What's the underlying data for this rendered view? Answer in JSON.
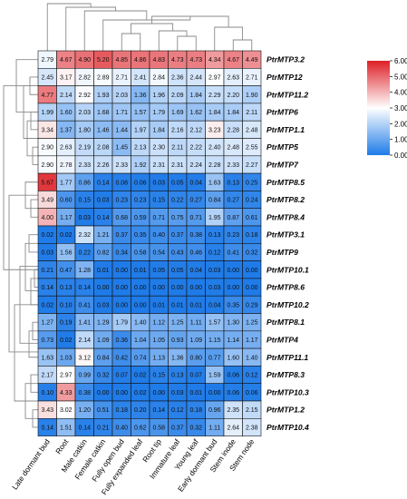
{
  "chart_data": {
    "type": "heatmap",
    "columns": [
      "Late dormant bud",
      "Root",
      "Male catkin",
      "Female catkin",
      "Fully open bud",
      "Fully expanded leaf",
      "Root tip",
      "Immature leaf",
      "Young leaf",
      "Early dormant bud",
      "Stem inode",
      "Stem node"
    ],
    "rows": [
      "PtrMTP3.2",
      "PtrMTP12",
      "PtrMTP11.2",
      "PtrMTP6",
      "PtrMTP1.1",
      "PtrMTP5",
      "PtrMTP7",
      "PtrMTP8.5",
      "PtrMTP8.2",
      "PtrMTP8.4",
      "PtrMTP3.1",
      "PtrMTP9",
      "PtrMTP10.1",
      "PtrMTP8.6",
      "PtrMTP10.2",
      "PtrMTP8.1",
      "PtrMTP4",
      "PtrMTP11.1",
      "PtrMTP8.3",
      "PtrMTP10.3",
      "PtrMTP1.2",
      "PtrMTP10.4"
    ],
    "values": [
      [
        "2.79",
        "4.67",
        "4.90",
        "5.20",
        "4.85",
        "4.86",
        "4.83",
        "4.73",
        "4.73",
        "4.34",
        "4.67",
        "4.49"
      ],
      [
        "2.45",
        "3.17",
        "2.82",
        "2.89",
        "2.71",
        "2.41",
        "2.84",
        "2.36",
        "2.44",
        "2.97",
        "2.63",
        "2.71"
      ],
      [
        "4.77",
        "2.14",
        "2.92",
        "1.93",
        "2.03",
        "1.36",
        "1.96",
        "2.09",
        "1.84",
        "2.29",
        "2.20",
        "1.90"
      ],
      [
        "1.99",
        "1.60",
        "2.03",
        "1.68",
        "1.71",
        "1.57",
        "1.79",
        "1.69",
        "1.62",
        "1.84",
        "1.84",
        "2.11"
      ],
      [
        "3.34",
        "1.37",
        "1.80",
        "1.46",
        "1.44",
        "1.97",
        "1.84",
        "2.16",
        "2.12",
        "3.23",
        "2.28",
        "2.48"
      ],
      [
        "2.90",
        "2.63",
        "2.19",
        "2.08",
        "1.45",
        "2.13",
        "2.30",
        "2.11",
        "2.22",
        "2.40",
        "2.48",
        "2.55"
      ],
      [
        "2.90",
        "2.78",
        "2.33",
        "2.26",
        "2.33",
        "1.92",
        "2.31",
        "2.31",
        "2.24",
        "2.28",
        "2.33",
        "2.27"
      ],
      [
        "5.67",
        "1.77",
        "0.86",
        "0.14",
        "0.08",
        "0.06",
        "0.03",
        "0.05",
        "0.04",
        "1.63",
        "0.13",
        "0.25"
      ],
      [
        "3.49",
        "0.60",
        "0.15",
        "0.03",
        "0.23",
        "0.23",
        "0.15",
        "0.22",
        "0.27",
        "0.84",
        "0.27",
        "0.24"
      ],
      [
        "4.00",
        "1.17",
        "0.03",
        "0.14",
        "0.68",
        "0.59",
        "0.71",
        "0.75",
        "0.71",
        "1.95",
        "0.87",
        "0.61"
      ],
      [
        "0.02",
        "0.02",
        "2.32",
        "1.21",
        "0.37",
        "0.35",
        "0.40",
        "0.37",
        "0.38",
        "0.13",
        "0.23",
        "0.18"
      ],
      [
        "0.03",
        "1.56",
        "0.22",
        "0.82",
        "0.34",
        "0.58",
        "0.54",
        "0.43",
        "0.46",
        "0.12",
        "0.41",
        "0.32"
      ],
      [
        "0.21",
        "0.47",
        "1.28",
        "0.01",
        "0.00",
        "0.01",
        "0.05",
        "0.05",
        "0.04",
        "0.03",
        "0.00",
        "0.00"
      ],
      [
        "0.14",
        "0.13",
        "0.14",
        "0.00",
        "0.00",
        "0.00",
        "0.00",
        "0.00",
        "0.00",
        "0.03",
        "0.00",
        "0.00"
      ],
      [
        "0.02",
        "0.10",
        "0.41",
        "0.03",
        "0.00",
        "0.00",
        "0.01",
        "0.01",
        "0.01",
        "0.04",
        "0.35",
        "0.29"
      ],
      [
        "1.27",
        "0.19",
        "1.41",
        "1.29",
        "1.79",
        "1.40",
        "1.12",
        "1.25",
        "1.11",
        "1.57",
        "1.30",
        "1.25"
      ],
      [
        "0.73",
        "0.02",
        "2.14",
        "1.09",
        "0.36",
        "1.04",
        "1.05",
        "0.93",
        "1.09",
        "1.15",
        "1.14",
        "1.17"
      ],
      [
        "1.63",
        "1.03",
        "3.12",
        "0.84",
        "0.42",
        "0.74",
        "1.13",
        "1.36",
        "0.80",
        "0.77",
        "1.60",
        "1.40"
      ],
      [
        "2.17",
        "2.97",
        "0.99",
        "0.32",
        "0.07",
        "0.02",
        "0.15",
        "0.13",
        "0.07",
        "1.59",
        "0.06",
        "0.12"
      ],
      [
        "0.10",
        "4.33",
        "0.38",
        "0.00",
        "0.00",
        "0.02",
        "0.00",
        "0.03",
        "0.01",
        "0.00",
        "0.06",
        "0.06"
      ],
      [
        "3.43",
        "3.02",
        "1.20",
        "0.51",
        "0.18",
        "0.20",
        "0.14",
        "0.12",
        "0.18",
        "0.96",
        "2.35",
        "2.15"
      ],
      [
        "0.14",
        "1.51",
        "0.14",
        "0.21",
        "0.40",
        "0.62",
        "0.58",
        "0.37",
        "0.32",
        "1.11",
        "2.64",
        "2.38"
      ]
    ],
    "color_scale": {
      "min": 0,
      "max": 6,
      "stops": [
        {
          "value": 0,
          "color": "#1f7be8"
        },
        {
          "value": 3,
          "color": "#ffffff"
        },
        {
          "value": 6,
          "color": "#dd1f26"
        }
      ],
      "ticks": [
        "0.00",
        "1.00",
        "2.00",
        "3.00",
        "4.00",
        "5.00",
        "6.00"
      ]
    },
    "legend_placement": "right",
    "row_dendrogram": "left",
    "column_dendrogram": "top"
  }
}
